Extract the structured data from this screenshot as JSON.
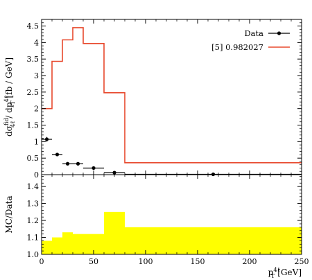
{
  "chart_data": [
    {
      "type": "line",
      "panel": "main",
      "ylabel": "dσ^fid_4ℓ / dp^4ℓ_T [fb / GeV]",
      "ylim": [
        0,
        4.7
      ],
      "xlim": [
        0,
        250
      ],
      "y_ticks": [
        "0",
        "0.5",
        "1",
        "1.5",
        "2",
        "2.5",
        "3",
        "3.5",
        "4",
        "4.5"
      ],
      "legend": {
        "placement": "top-right",
        "entries": [
          {
            "label": "Data",
            "style": "points-with-errorbars",
            "color": "#000000"
          },
          {
            "label": "[5] 0.982027",
            "style": "line",
            "color": "#e8492d"
          }
        ]
      },
      "series": [
        {
          "name": "Data",
          "kind": "points",
          "color": "#000000",
          "points": [
            {
              "x": 5,
              "xlo": 0,
              "xhi": 10,
              "y": 1.07,
              "yerr": 0.07
            },
            {
              "x": 15,
              "xlo": 10,
              "xhi": 20,
              "y": 0.61,
              "yerr": 0.04
            },
            {
              "x": 25,
              "xlo": 20,
              "xhi": 30,
              "y": 0.33,
              "yerr": 0.03
            },
            {
              "x": 35,
              "xlo": 30,
              "xhi": 40,
              "y": 0.33,
              "yerr": 0.03
            },
            {
              "x": 50,
              "xlo": 40,
              "xhi": 60,
              "y": 0.2,
              "yerr": 0.02
            },
            {
              "x": 70,
              "xlo": 60,
              "xhi": 80,
              "y": 0.06,
              "yerr": 0.01
            },
            {
              "x": 165,
              "xlo": 80,
              "xhi": 250,
              "y": 0.01,
              "yerr": 0.005
            }
          ]
        },
        {
          "name": "[5] 0.982027",
          "kind": "step",
          "color": "#e8492d",
          "bins": [
            {
              "xlo": 0,
              "xhi": 10,
              "y": 2.0
            },
            {
              "xlo": 10,
              "xhi": 20,
              "y": 3.43
            },
            {
              "xlo": 20,
              "xhi": 30,
              "y": 4.08
            },
            {
              "xlo": 30,
              "xhi": 40,
              "y": 4.45
            },
            {
              "xlo": 40,
              "xhi": 60,
              "y": 3.97
            },
            {
              "xlo": 60,
              "xhi": 80,
              "y": 2.48
            },
            {
              "xlo": 80,
              "xhi": 250,
              "y": 0.36
            }
          ]
        }
      ]
    },
    {
      "type": "area",
      "panel": "ratio",
      "xlabel": "p^4ℓ_T [GeV]",
      "ylabel": "MC/Data",
      "ylim": [
        1.0,
        1.47
      ],
      "xlim": [
        0,
        250
      ],
      "y_ticks": [
        "1.0",
        "1.1",
        "1.2",
        "1.3",
        "1.4"
      ],
      "x_ticks": [
        "0",
        "50",
        "100",
        "150",
        "200",
        "250"
      ],
      "band_color": "#ffff00",
      "bins": [
        {
          "xlo": 0,
          "xhi": 10,
          "y": 1.08
        },
        {
          "xlo": 10,
          "xhi": 20,
          "y": 1.1
        },
        {
          "xlo": 20,
          "xhi": 30,
          "y": 1.13
        },
        {
          "xlo": 30,
          "xhi": 40,
          "y": 1.12
        },
        {
          "xlo": 40,
          "xhi": 60,
          "y": 1.12
        },
        {
          "xlo": 60,
          "xhi": 80,
          "y": 1.25
        },
        {
          "xlo": 80,
          "xhi": 250,
          "y": 1.16
        }
      ]
    }
  ]
}
